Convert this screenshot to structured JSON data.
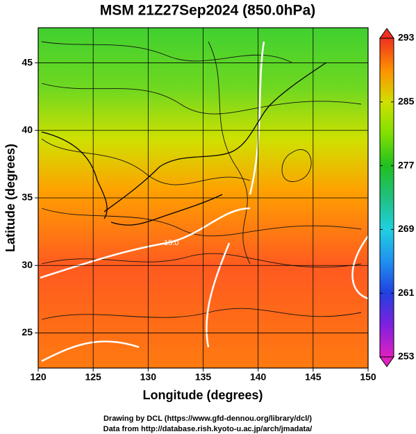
{
  "chart_data": {
    "type": "map",
    "title": "MSM 21Z27Sep2024 (850.0hPa)",
    "xlabel": "Longitude (degrees)",
    "ylabel": "Latitude  (degrees)",
    "xlim": [
      120,
      150
    ],
    "xticks": [
      120,
      125,
      130,
      135,
      140,
      145,
      150
    ],
    "ylim": [
      22.4,
      47.6
    ],
    "yticks": [
      25,
      30,
      35,
      40,
      45
    ],
    "grid": true,
    "colorbar": {
      "lim": [
        253,
        293
      ],
      "ticks": [
        253,
        261,
        269,
        277,
        285,
        293
      ],
      "colormap": [
        "#e020c0",
        "#8020e0",
        "#2040e0",
        "#2090f0",
        "#20d0e0",
        "#20c080",
        "#20c020",
        "#80e000",
        "#d0e000",
        "#ff9000",
        "#f03020"
      ]
    },
    "annotation": "15.0",
    "credits": [
      "Drawing by DCL (https://www.gfd-dennou.org/library/dcl/)",
      "Data from http://database.rish.kyoto-u.ac.jp/arch/jmadata/"
    ]
  }
}
